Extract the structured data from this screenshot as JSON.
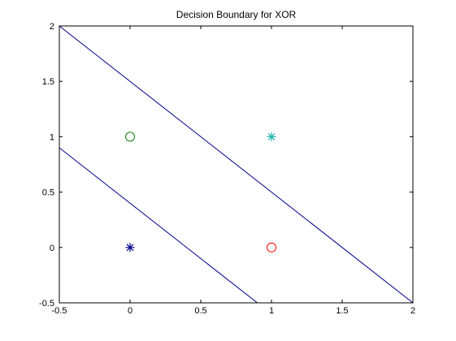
{
  "chart_data": {
    "type": "scatter",
    "title": "Decision Boundary for XOR",
    "xlabel": "",
    "ylabel": "",
    "xlim": [
      -0.5,
      2
    ],
    "ylim": [
      -0.5,
      2
    ],
    "x_ticks": [
      -0.5,
      0,
      0.5,
      1,
      1.5,
      2
    ],
    "x_tick_labels": [
      "-0.5",
      "0",
      "0.5",
      "1",
      "1.5",
      "2"
    ],
    "y_ticks": [
      -0.5,
      0,
      0.5,
      1,
      1.5,
      2
    ],
    "y_tick_labels": [
      "-0.5",
      "0",
      "0.5",
      "1",
      "1.5",
      "2"
    ],
    "grid": false,
    "points": [
      {
        "x": 0,
        "y": 0,
        "marker": "asterisk",
        "color": "#00008b"
      },
      {
        "x": 1,
        "y": 1,
        "marker": "asterisk",
        "color": "#20b2aa"
      },
      {
        "x": 0,
        "y": 1,
        "marker": "circle",
        "color": "#008000"
      },
      {
        "x": 1,
        "y": 0,
        "marker": "circle",
        "color": "#ff0000"
      }
    ],
    "lines": [
      {
        "x": [
          -0.5,
          2
        ],
        "y": [
          2,
          -0.5
        ],
        "color": "#00008b"
      },
      {
        "x": [
          -0.5,
          0.9
        ],
        "y": [
          0.9,
          -0.5
        ],
        "color": "#00008b"
      }
    ]
  }
}
